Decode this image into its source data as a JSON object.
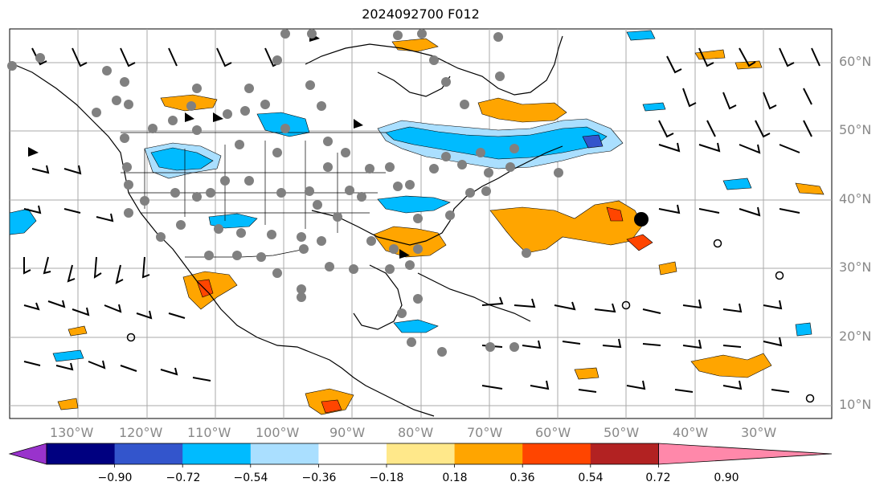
{
  "title": "2024092700 F012",
  "lat_labels": [
    "60°N",
    "50°N",
    "40°N",
    "30°N",
    "20°N",
    "10°N"
  ],
  "lon_labels": [
    "130°W",
    "120°W",
    "110°W",
    "100°W",
    "90°W",
    "80°W",
    "70°W",
    "60°W",
    "50°W",
    "40°W",
    "30°W"
  ],
  "colorbar": {
    "ticks": [
      "−0.90",
      "−0.72",
      "−0.54",
      "−0.36",
      "−0.18",
      "0.18",
      "0.36",
      "0.54",
      "0.72",
      "0.90"
    ],
    "colors": [
      "#9933cc",
      "#000080",
      "#3355cc",
      "#00bbff",
      "#aadfff",
      "#ffffff",
      "#ffe88a",
      "#ffa500",
      "#ff4500",
      "#b22222",
      "#ff88aa"
    ]
  },
  "colors": {
    "orange": "#ffa500",
    "red": "#ff4500",
    "cyan": "#00bbff",
    "lightblue": "#aadfff",
    "blue": "#3355cc",
    "gray_dots": "#808080",
    "grid": "#aaaaaa"
  }
}
